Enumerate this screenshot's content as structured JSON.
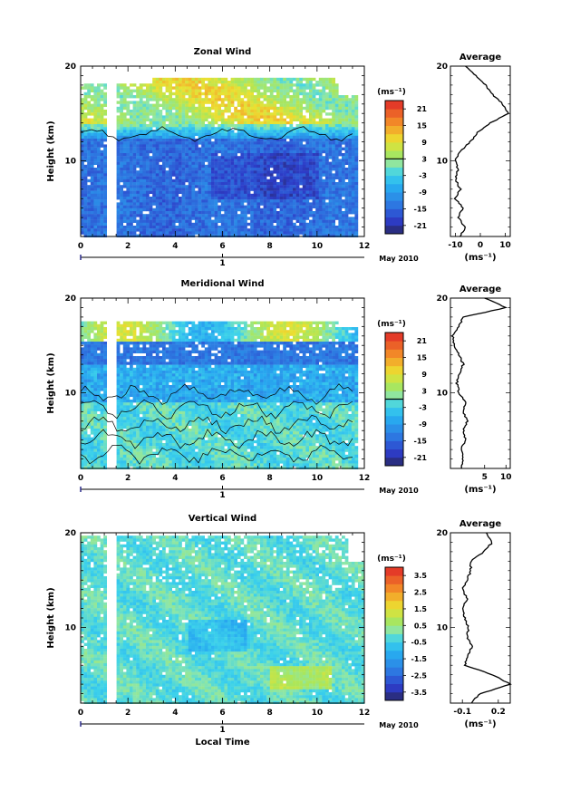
{
  "chart_data": [
    {
      "type": "heatmap",
      "title": "Zonal Wind",
      "xlabel": "",
      "ylabel": "Height (km)",
      "xlim": [
        0,
        12
      ],
      "ylim": [
        2,
        20
      ],
      "xticks": [
        "0",
        "2",
        "4",
        "6",
        "8",
        "10",
        "12"
      ],
      "yticks": [
        "10",
        "20"
      ],
      "date_axis": {
        "label": "May 2010",
        "tick": "1"
      },
      "colorbar": {
        "unit": "(ms⁻¹)",
        "ticks": [
          "21",
          "15",
          "9",
          "3",
          "-3",
          "-9",
          "-15",
          "-21"
        ],
        "range": [
          -24,
          24
        ],
        "zero_contour_at": 3
      },
      "average_profile": {
        "title": "Average",
        "xlabel": "(ms⁻¹)",
        "xlim": [
          -12,
          12
        ],
        "xticks": [
          "-10",
          "0",
          "10"
        ],
        "yticks": [
          "10",
          "20"
        ],
        "height_km": [
          2,
          3,
          4,
          5,
          6,
          7,
          8,
          9,
          10,
          11,
          12,
          13,
          14,
          15,
          16,
          17,
          18,
          19,
          20
        ],
        "values": [
          -8,
          -6,
          -9,
          -7,
          -10,
          -8,
          -10,
          -9,
          -10,
          -8,
          -4,
          -1,
          4,
          11,
          9,
          5,
          2,
          -2,
          -6
        ]
      }
    },
    {
      "type": "heatmap",
      "title": "Meridional Wind",
      "xlabel": "",
      "ylabel": "Height (km)",
      "xlim": [
        0,
        12
      ],
      "ylim": [
        2,
        20
      ],
      "xticks": [
        "0",
        "2",
        "4",
        "6",
        "8",
        "10",
        "12"
      ],
      "yticks": [
        "10",
        "20"
      ],
      "date_axis": {
        "label": "May 2010",
        "tick": "1"
      },
      "colorbar": {
        "unit": "(ms⁻¹)",
        "ticks": [
          "21",
          "15",
          "9",
          "3",
          "-3",
          "-9",
          "-15",
          "-21"
        ],
        "range": [
          -24,
          24
        ],
        "zero_contour_at": 0
      },
      "average_profile": {
        "title": "Average",
        "xlabel": "(ms⁻¹)",
        "xlim": [
          -3,
          11
        ],
        "xticks": [
          "5",
          "10"
        ],
        "yticks": [
          "10",
          "20"
        ],
        "height_km": [
          2,
          3,
          4,
          5,
          6,
          7,
          8,
          9,
          10,
          11,
          12,
          13,
          14,
          15,
          16,
          17,
          18,
          19,
          20
        ],
        "values": [
          -0.5,
          0,
          -0.5,
          0.5,
          0,
          1,
          0,
          0.5,
          -1,
          -1.5,
          -1,
          0,
          -1,
          -2,
          -2.5,
          -1,
          0,
          10,
          5
        ]
      }
    },
    {
      "type": "heatmap",
      "title": "Vertical Wind",
      "xlabel": "Local Time",
      "ylabel": "Height (km)",
      "xlim": [
        0,
        12
      ],
      "ylim": [
        2,
        20
      ],
      "xticks": [
        "0",
        "2",
        "4",
        "6",
        "8",
        "10",
        "12"
      ],
      "yticks": [
        "10",
        "20"
      ],
      "date_axis": {
        "label": "May 2010",
        "tick": "1"
      },
      "colorbar": {
        "unit": "(ms⁻¹)",
        "ticks": [
          "3.5",
          "2.5",
          "1.5",
          "0.5",
          "-0.5",
          "-1.5",
          "-2.5",
          "-3.5"
        ],
        "range": [
          -4,
          4
        ]
      },
      "average_profile": {
        "title": "Average",
        "xlabel": "(ms⁻¹)",
        "xlim": [
          -0.2,
          0.3
        ],
        "xticks": [
          "-0.1",
          "0.2"
        ],
        "yticks": [
          "10",
          "20"
        ],
        "height_km": [
          2,
          3,
          4,
          5,
          6,
          7,
          8,
          9,
          10,
          11,
          12,
          13,
          14,
          15,
          16,
          17,
          18,
          19,
          20
        ],
        "values": [
          -0.03,
          0.05,
          0.3,
          0.15,
          -0.08,
          -0.05,
          -0.02,
          -0.06,
          -0.05,
          -0.08,
          -0.1,
          -0.06,
          -0.1,
          -0.06,
          -0.03,
          -0.03,
          0.08,
          0.15,
          0.1
        ]
      }
    }
  ]
}
